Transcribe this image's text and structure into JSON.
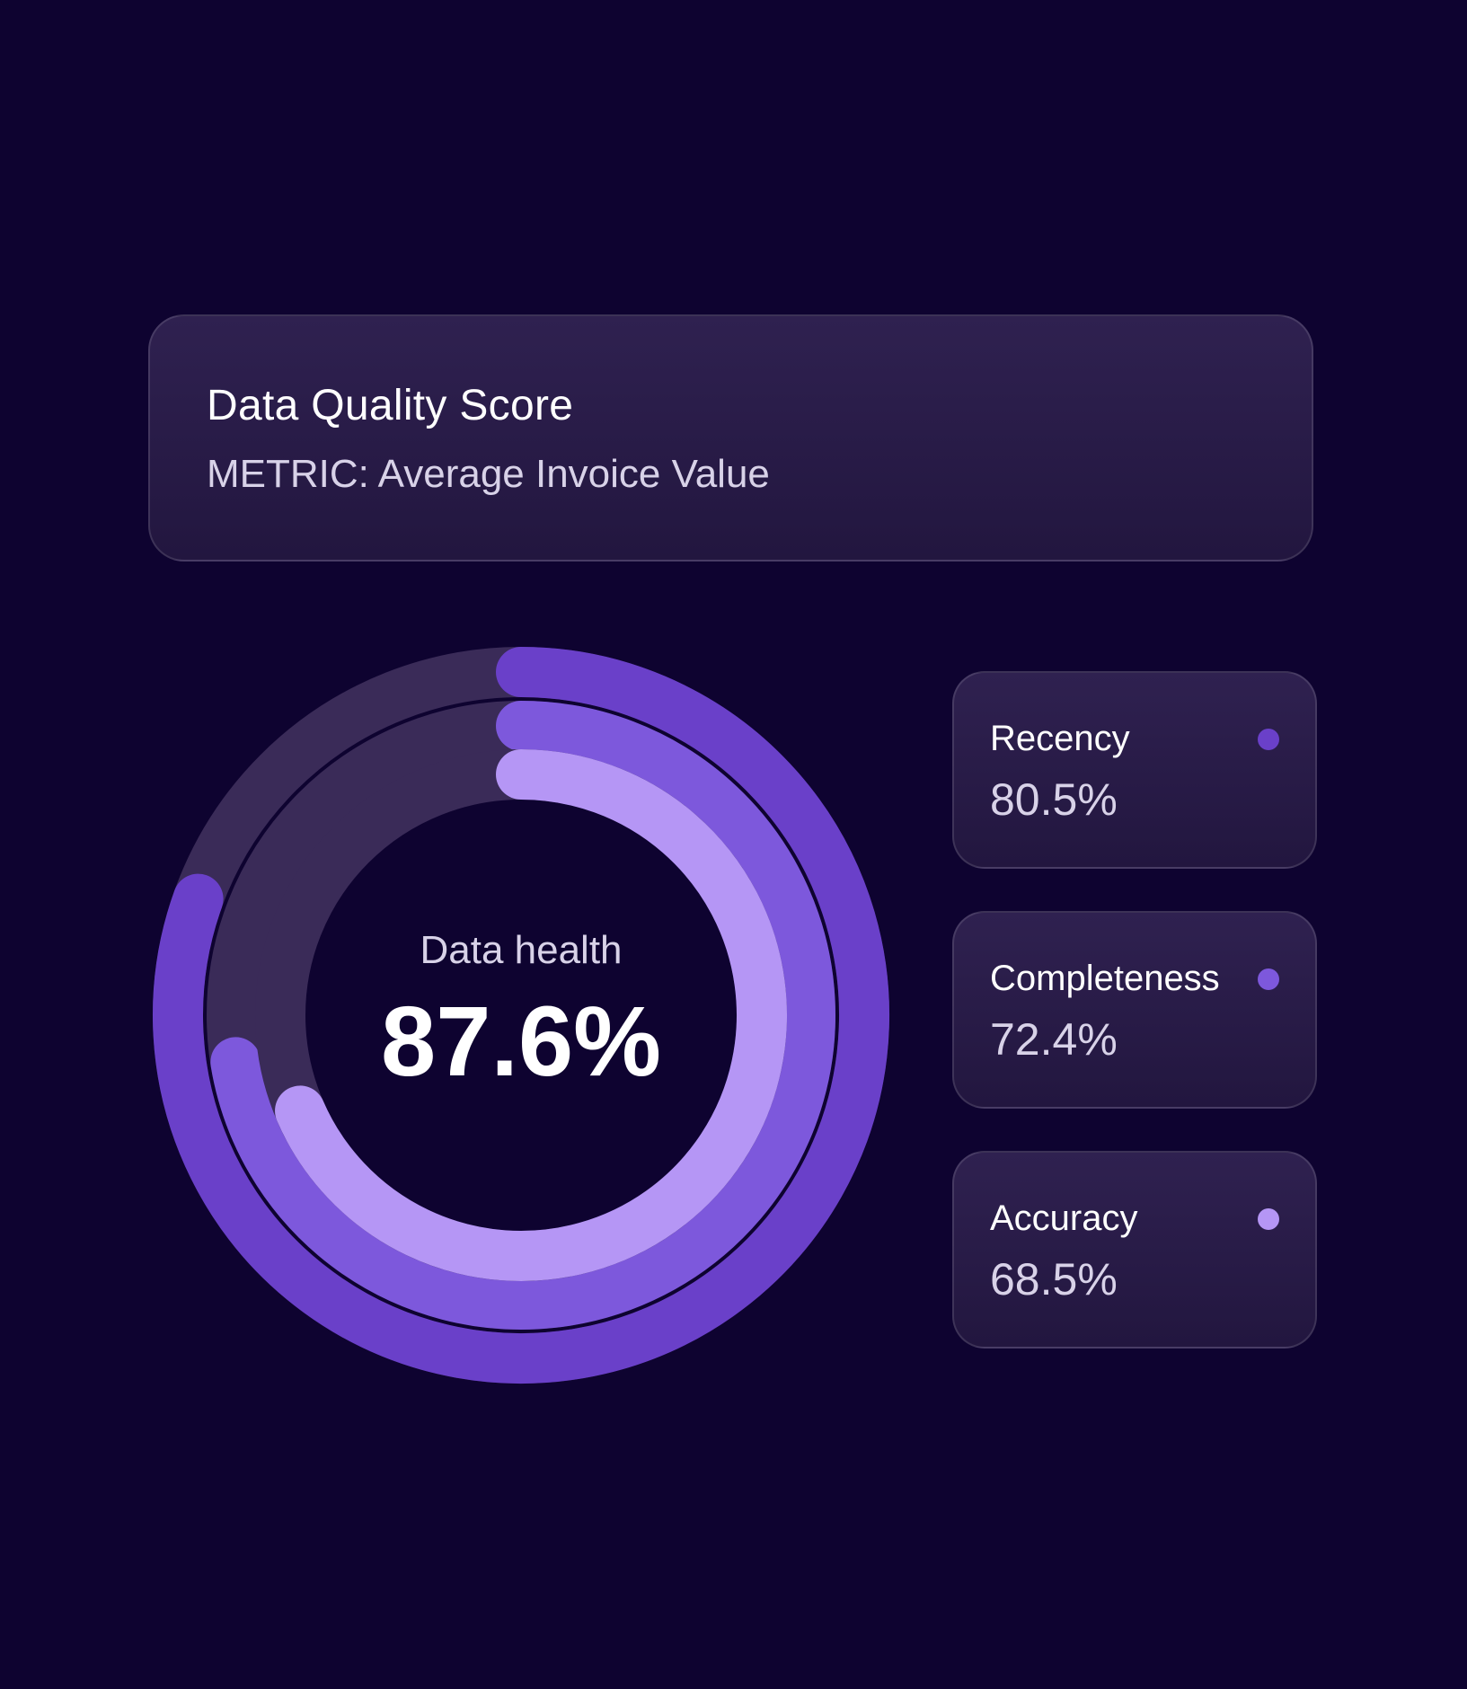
{
  "header": {
    "title": "Data Quality Score",
    "subtitle": "METRIC: Average Invoice Value"
  },
  "chart_data": {
    "type": "radial-bar",
    "center_label": "Data health",
    "center_value": "87.6%",
    "series": [
      {
        "name": "Recency",
        "value": 80.5,
        "display": "80.5%",
        "color": "#6a40c9"
      },
      {
        "name": "Completeness",
        "value": 72.4,
        "display": "72.4%",
        "color": "#7d58dc"
      },
      {
        "name": "Accuracy",
        "value": 68.5,
        "display": "68.5%",
        "color": "#b596f5"
      }
    ],
    "track_color": "#3a2b58",
    "max": 100
  }
}
